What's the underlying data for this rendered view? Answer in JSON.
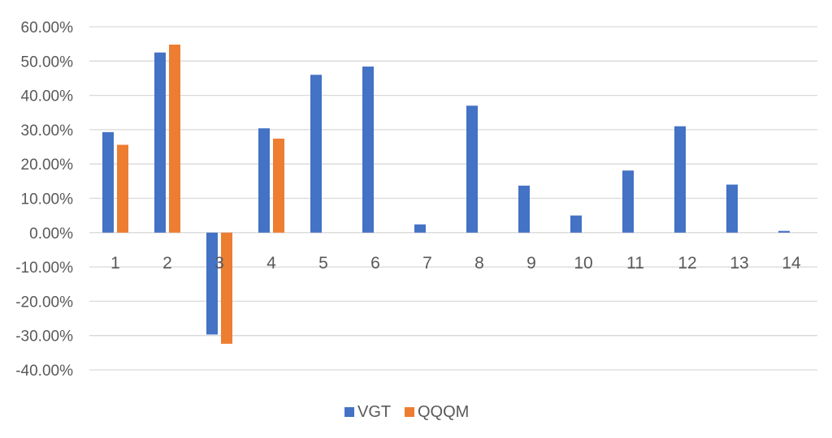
{
  "chart_data": {
    "type": "bar",
    "title": "",
    "xlabel": "",
    "ylabel": "",
    "categories": [
      "1",
      "2",
      "3",
      "4",
      "5",
      "6",
      "7",
      "8",
      "9",
      "10",
      "11",
      "12",
      "13",
      "14"
    ],
    "y_ticks": [
      "60.00%",
      "50.00%",
      "40.00%",
      "30.00%",
      "20.00%",
      "10.00%",
      "0.00%",
      "-10.00%",
      "-20.00%",
      "-30.00%",
      "-40.00%"
    ],
    "ylim": [
      -40,
      60
    ],
    "grid": true,
    "legend_position": "bottom-center",
    "series": [
      {
        "name": "VGT",
        "color": "#4472C4",
        "values": [
          29.3,
          52.5,
          -29.7,
          30.4,
          46.0,
          48.4,
          2.4,
          37.0,
          13.7,
          5.0,
          18.1,
          31.0,
          14.0,
          0.5
        ]
      },
      {
        "name": "QQQM",
        "color": "#ED7D31",
        "values": [
          25.6,
          54.8,
          -32.4,
          27.4,
          null,
          null,
          null,
          null,
          null,
          null,
          null,
          null,
          null,
          null
        ]
      }
    ]
  }
}
